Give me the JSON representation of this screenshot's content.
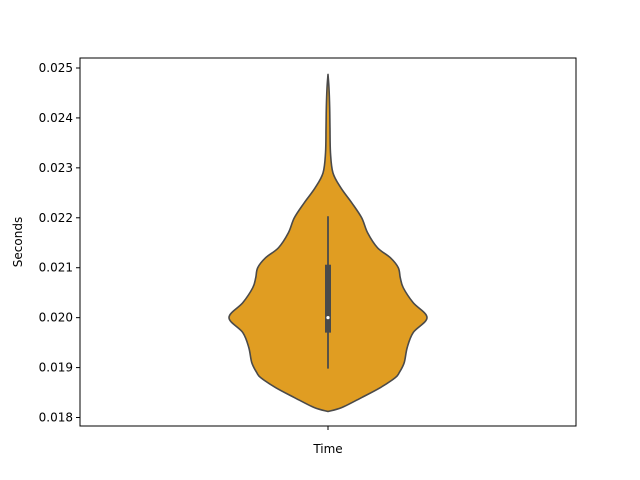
{
  "chart_data": {
    "type": "violin",
    "title": "",
    "xlabel": "",
    "ylabel": "Seconds",
    "categories": [
      "Time"
    ],
    "ylim": [
      0.01783,
      0.0252
    ],
    "yticks": [
      0.018,
      0.019,
      0.02,
      0.021,
      0.022,
      0.023,
      0.024,
      0.025
    ],
    "ytick_labels": [
      "0.018",
      "0.019",
      "0.020",
      "0.021",
      "0.022",
      "0.023",
      "0.024",
      "0.025"
    ],
    "grid": false,
    "violin": {
      "category": "Time",
      "color": "#E09D22",
      "edge_color": "#4a4a4a",
      "min": 0.01812,
      "max": 0.02487,
      "density_profile": [
        [
          0.01812,
          0.0
        ],
        [
          0.0182,
          0.14
        ],
        [
          0.0184,
          0.34
        ],
        [
          0.0186,
          0.53
        ],
        [
          0.0188,
          0.68
        ],
        [
          0.0189,
          0.72
        ],
        [
          0.0191,
          0.77
        ],
        [
          0.0194,
          0.8
        ],
        [
          0.0197,
          0.86
        ],
        [
          0.02,
          1.0
        ],
        [
          0.0203,
          0.86
        ],
        [
          0.0206,
          0.76
        ],
        [
          0.0208,
          0.73
        ],
        [
          0.021,
          0.71
        ],
        [
          0.0212,
          0.63
        ],
        [
          0.0214,
          0.5
        ],
        [
          0.0217,
          0.4
        ],
        [
          0.022,
          0.34
        ],
        [
          0.0223,
          0.24
        ],
        [
          0.0226,
          0.13
        ],
        [
          0.0229,
          0.05
        ],
        [
          0.0233,
          0.025
        ],
        [
          0.0238,
          0.02
        ],
        [
          0.0242,
          0.017
        ],
        [
          0.0246,
          0.01
        ],
        [
          0.02487,
          0.0
        ]
      ],
      "box": {
        "q1": 0.0197,
        "median": 0.02,
        "q3": 0.02106,
        "whisker_low": 0.01898,
        "whisker_high": 0.02203
      }
    }
  }
}
